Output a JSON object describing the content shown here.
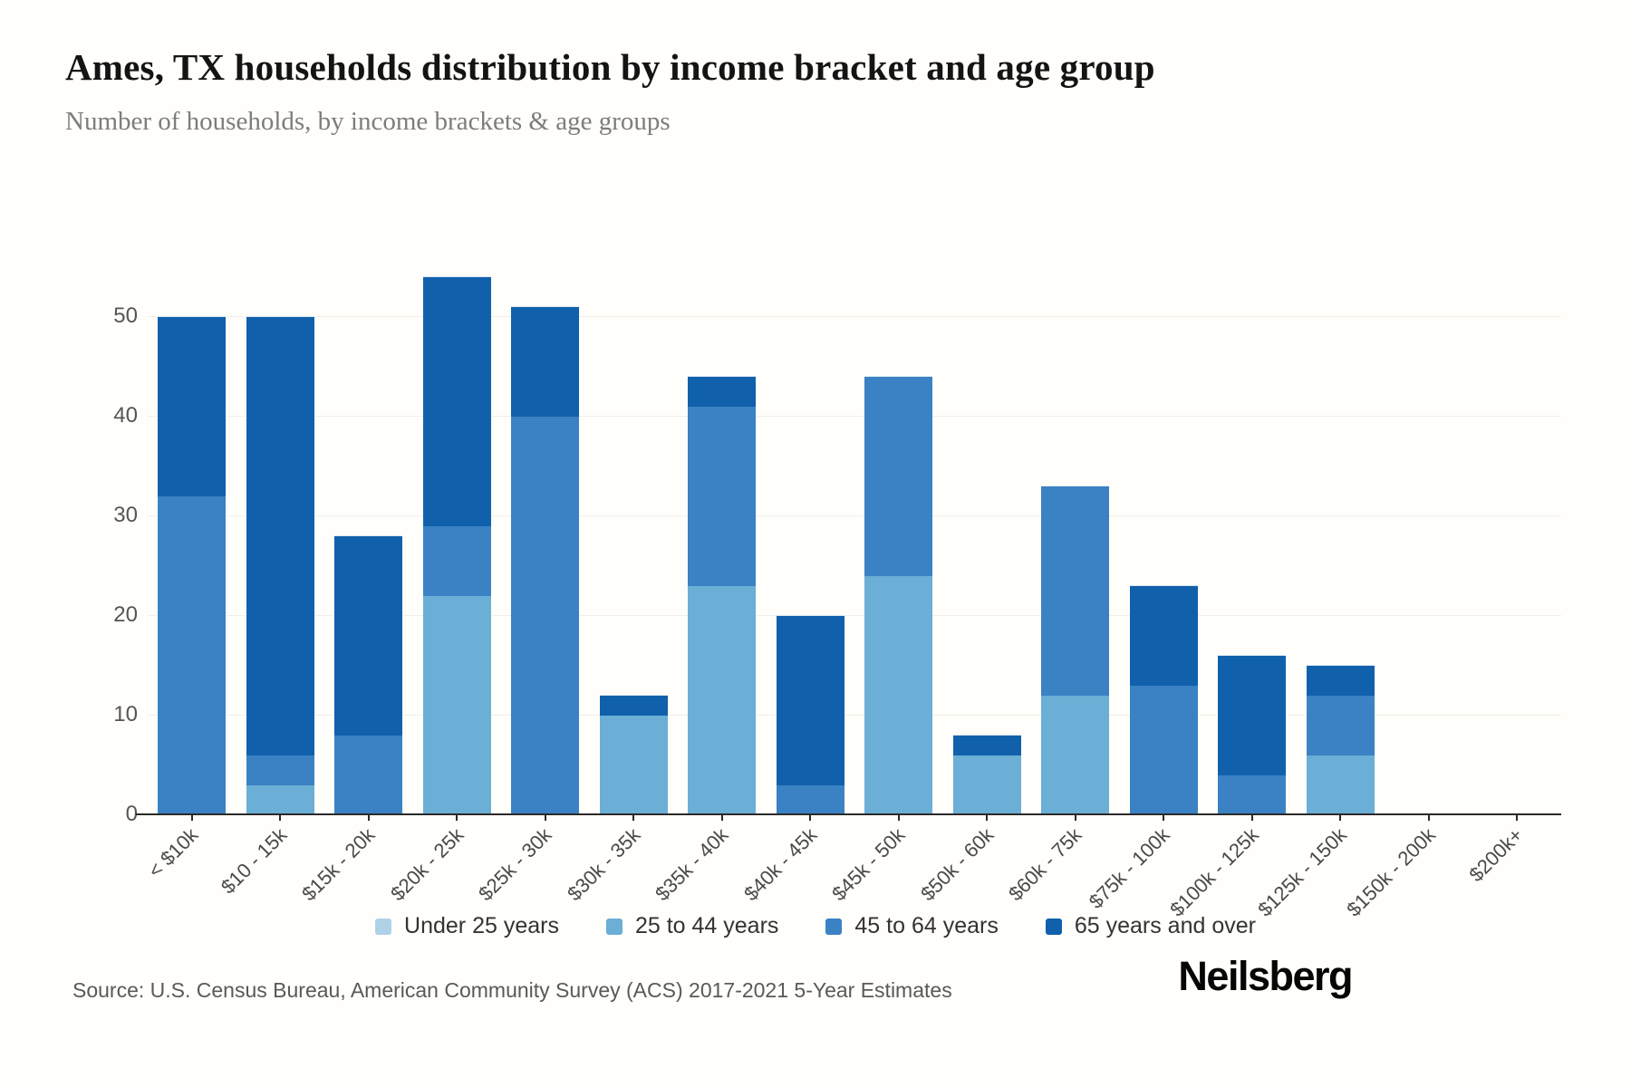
{
  "header": {
    "title": "Ames, TX households distribution by income bracket and age group",
    "subtitle": "Number of households, by income brackets & age groups"
  },
  "chart_data": {
    "type": "bar",
    "stacked": true,
    "title": "Ames, TX households distribution by income bracket and age group",
    "subtitle": "Number of households, by income brackets & age groups",
    "xlabel": "",
    "ylabel": "",
    "categories": [
      "< $10k",
      "$10 - 15k",
      "$15k - 20k",
      "$20k - 25k",
      "$25k - 30k",
      "$30k - 35k",
      "$35k - 40k",
      "$40k - 45k",
      "$45k - 50k",
      "$50k - 60k",
      "$60k - 75k",
      "$75k - 100k",
      "$100k - 125k",
      "$125k - 150k",
      "$150k - 200k",
      "$200k+"
    ],
    "series": [
      {
        "name": "Under 25 years",
        "color": "#b0d2e7",
        "values": [
          0,
          0,
          0,
          0,
          0,
          0,
          0,
          0,
          0,
          0,
          0,
          0,
          0,
          0,
          0,
          0
        ]
      },
      {
        "name": "25 to 44 years",
        "color": "#6baed6",
        "values": [
          0,
          3,
          0,
          22,
          0,
          10,
          23,
          0,
          24,
          6,
          12,
          0,
          0,
          6,
          0,
          0
        ]
      },
      {
        "name": "45 to 64 years",
        "color": "#3a82c4",
        "values": [
          32,
          3,
          8,
          7,
          40,
          0,
          18,
          3,
          20,
          0,
          21,
          13,
          4,
          6,
          0,
          0
        ]
      },
      {
        "name": "65 years and over",
        "color": "#1160ab",
        "values": [
          18,
          44,
          20,
          25,
          11,
          2,
          3,
          17,
          0,
          2,
          0,
          10,
          12,
          3,
          0,
          0
        ]
      }
    ],
    "totals": [
      50,
      50,
      28,
      54,
      51,
      12,
      44,
      20,
      44,
      8,
      33,
      23,
      16,
      15,
      0,
      0
    ],
    "yticks": [
      0,
      10,
      20,
      30,
      40,
      50
    ],
    "ylim": [
      0,
      56
    ],
    "grid": "horizontal",
    "legend_position": "bottom"
  },
  "footer": {
    "source": "Source: U.S. Census Bureau, American Community Survey (ACS) 2017-2021 5-Year Estimates",
    "brand": "Neilsberg"
  }
}
